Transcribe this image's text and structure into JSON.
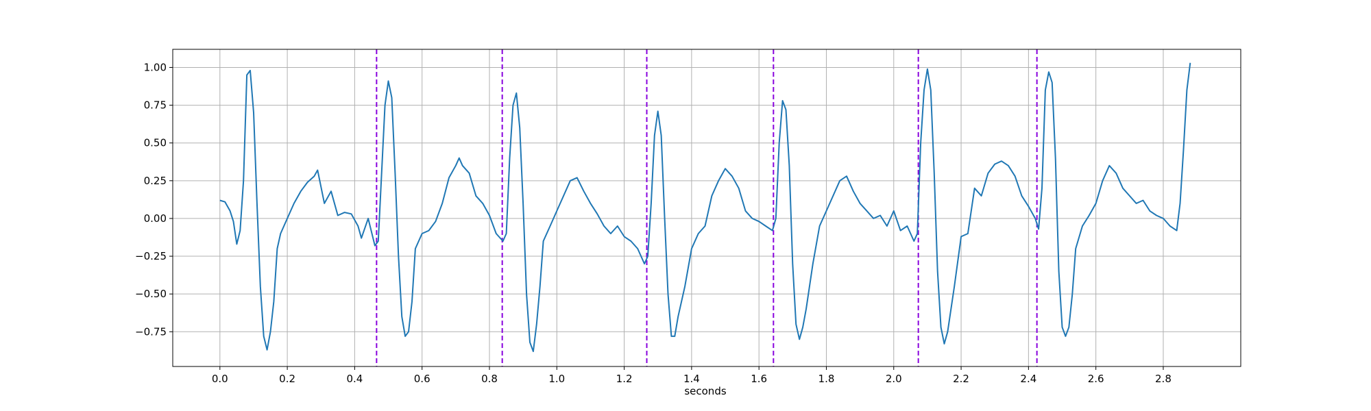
{
  "chart_data": {
    "type": "line",
    "title": "",
    "xlabel": "seconds",
    "ylabel": "",
    "xlim": [
      -0.14,
      3.03
    ],
    "ylim": [
      -0.98,
      1.12
    ],
    "grid": true,
    "legend": "none",
    "xticks": [
      0.0,
      0.2,
      0.4,
      0.6,
      0.8,
      1.0,
      1.2,
      1.4,
      1.6,
      1.8,
      2.0,
      2.2,
      2.4,
      2.6,
      2.8
    ],
    "xtick_labels": [
      "0.0",
      "0.2",
      "0.4",
      "0.6",
      "0.8",
      "1.0",
      "1.2",
      "1.4",
      "1.6",
      "1.8",
      "2.0",
      "2.2",
      "2.4",
      "2.6",
      "2.8"
    ],
    "yticks": [
      -0.75,
      -0.5,
      -0.25,
      0.0,
      0.25,
      0.5,
      0.75,
      1.0
    ],
    "ytick_labels": [
      "−0.75",
      "−0.50",
      "−0.25",
      "0.00",
      "0.25",
      "0.50",
      "0.75",
      "1.00"
    ],
    "series": [
      {
        "color": "#1f77b4",
        "points": [
          [
            0.0,
            0.12
          ],
          [
            0.015,
            0.11
          ],
          [
            0.03,
            0.05
          ],
          [
            0.04,
            -0.02
          ],
          [
            0.05,
            -0.17
          ],
          [
            0.06,
            -0.08
          ],
          [
            0.07,
            0.25
          ],
          [
            0.08,
            0.95
          ],
          [
            0.09,
            0.98
          ],
          [
            0.1,
            0.7
          ],
          [
            0.11,
            0.1
          ],
          [
            0.12,
            -0.45
          ],
          [
            0.13,
            -0.78
          ],
          [
            0.14,
            -0.87
          ],
          [
            0.15,
            -0.75
          ],
          [
            0.16,
            -0.55
          ],
          [
            0.17,
            -0.2
          ],
          [
            0.18,
            -0.1
          ],
          [
            0.2,
            0.0
          ],
          [
            0.22,
            0.1
          ],
          [
            0.24,
            0.18
          ],
          [
            0.26,
            0.24
          ],
          [
            0.28,
            0.28
          ],
          [
            0.29,
            0.32
          ],
          [
            0.31,
            0.1
          ],
          [
            0.33,
            0.18
          ],
          [
            0.35,
            0.02
          ],
          [
            0.37,
            0.04
          ],
          [
            0.39,
            0.03
          ],
          [
            0.41,
            -0.05
          ],
          [
            0.42,
            -0.13
          ],
          [
            0.44,
            0.0
          ],
          [
            0.46,
            -0.18
          ],
          [
            0.47,
            -0.15
          ],
          [
            0.48,
            0.3
          ],
          [
            0.49,
            0.75
          ],
          [
            0.5,
            0.91
          ],
          [
            0.51,
            0.8
          ],
          [
            0.52,
            0.3
          ],
          [
            0.53,
            -0.25
          ],
          [
            0.54,
            -0.65
          ],
          [
            0.55,
            -0.78
          ],
          [
            0.56,
            -0.75
          ],
          [
            0.57,
            -0.55
          ],
          [
            0.58,
            -0.2
          ],
          [
            0.6,
            -0.1
          ],
          [
            0.62,
            -0.08
          ],
          [
            0.64,
            -0.02
          ],
          [
            0.66,
            0.1
          ],
          [
            0.68,
            0.27
          ],
          [
            0.7,
            0.35
          ],
          [
            0.71,
            0.4
          ],
          [
            0.72,
            0.35
          ],
          [
            0.74,
            0.3
          ],
          [
            0.76,
            0.15
          ],
          [
            0.78,
            0.1
          ],
          [
            0.8,
            0.02
          ],
          [
            0.82,
            -0.1
          ],
          [
            0.84,
            -0.15
          ],
          [
            0.85,
            -0.1
          ],
          [
            0.86,
            0.4
          ],
          [
            0.87,
            0.75
          ],
          [
            0.88,
            0.83
          ],
          [
            0.89,
            0.6
          ],
          [
            0.9,
            0.1
          ],
          [
            0.91,
            -0.5
          ],
          [
            0.92,
            -0.82
          ],
          [
            0.93,
            -0.88
          ],
          [
            0.94,
            -0.7
          ],
          [
            0.95,
            -0.45
          ],
          [
            0.96,
            -0.15
          ],
          [
            0.98,
            -0.05
          ],
          [
            1.0,
            0.05
          ],
          [
            1.02,
            0.15
          ],
          [
            1.04,
            0.25
          ],
          [
            1.06,
            0.27
          ],
          [
            1.08,
            0.18
          ],
          [
            1.1,
            0.1
          ],
          [
            1.12,
            0.03
          ],
          [
            1.14,
            -0.05
          ],
          [
            1.16,
            -0.1
          ],
          [
            1.18,
            -0.05
          ],
          [
            1.2,
            -0.12
          ],
          [
            1.22,
            -0.15
          ],
          [
            1.24,
            -0.2
          ],
          [
            1.26,
            -0.3
          ],
          [
            1.27,
            -0.25
          ],
          [
            1.28,
            0.1
          ],
          [
            1.29,
            0.55
          ],
          [
            1.3,
            0.71
          ],
          [
            1.31,
            0.55
          ],
          [
            1.32,
            0.0
          ],
          [
            1.33,
            -0.5
          ],
          [
            1.34,
            -0.78
          ],
          [
            1.35,
            -0.78
          ],
          [
            1.36,
            -0.65
          ],
          [
            1.38,
            -0.45
          ],
          [
            1.4,
            -0.2
          ],
          [
            1.42,
            -0.1
          ],
          [
            1.44,
            -0.05
          ],
          [
            1.46,
            0.15
          ],
          [
            1.48,
            0.25
          ],
          [
            1.5,
            0.33
          ],
          [
            1.52,
            0.28
          ],
          [
            1.54,
            0.2
          ],
          [
            1.56,
            0.05
          ],
          [
            1.58,
            0.0
          ],
          [
            1.6,
            -0.02
          ],
          [
            1.62,
            -0.05
          ],
          [
            1.64,
            -0.08
          ],
          [
            1.65,
            0.0
          ],
          [
            1.66,
            0.5
          ],
          [
            1.67,
            0.78
          ],
          [
            1.68,
            0.72
          ],
          [
            1.69,
            0.35
          ],
          [
            1.7,
            -0.3
          ],
          [
            1.71,
            -0.7
          ],
          [
            1.72,
            -0.8
          ],
          [
            1.73,
            -0.72
          ],
          [
            1.74,
            -0.6
          ],
          [
            1.76,
            -0.3
          ],
          [
            1.78,
            -0.05
          ],
          [
            1.8,
            0.05
          ],
          [
            1.82,
            0.15
          ],
          [
            1.84,
            0.25
          ],
          [
            1.86,
            0.28
          ],
          [
            1.88,
            0.18
          ],
          [
            1.9,
            0.1
          ],
          [
            1.92,
            0.05
          ],
          [
            1.94,
            0.0
          ],
          [
            1.96,
            0.02
          ],
          [
            1.98,
            -0.05
          ],
          [
            2.0,
            0.05
          ],
          [
            2.02,
            -0.08
          ],
          [
            2.04,
            -0.05
          ],
          [
            2.06,
            -0.15
          ],
          [
            2.07,
            -0.1
          ],
          [
            2.08,
            0.5
          ],
          [
            2.09,
            0.85
          ],
          [
            2.1,
            0.99
          ],
          [
            2.11,
            0.85
          ],
          [
            2.12,
            0.3
          ],
          [
            2.13,
            -0.35
          ],
          [
            2.14,
            -0.72
          ],
          [
            2.15,
            -0.83
          ],
          [
            2.16,
            -0.75
          ],
          [
            2.18,
            -0.45
          ],
          [
            2.2,
            -0.12
          ],
          [
            2.22,
            -0.1
          ],
          [
            2.24,
            0.2
          ],
          [
            2.26,
            0.15
          ],
          [
            2.28,
            0.3
          ],
          [
            2.3,
            0.36
          ],
          [
            2.32,
            0.38
          ],
          [
            2.34,
            0.35
          ],
          [
            2.36,
            0.28
          ],
          [
            2.38,
            0.15
          ],
          [
            2.4,
            0.08
          ],
          [
            2.42,
            0.0
          ],
          [
            2.43,
            -0.07
          ],
          [
            2.44,
            0.2
          ],
          [
            2.45,
            0.85
          ],
          [
            2.46,
            0.97
          ],
          [
            2.47,
            0.9
          ],
          [
            2.48,
            0.4
          ],
          [
            2.49,
            -0.35
          ],
          [
            2.5,
            -0.72
          ],
          [
            2.51,
            -0.78
          ],
          [
            2.52,
            -0.72
          ],
          [
            2.53,
            -0.5
          ],
          [
            2.54,
            -0.2
          ],
          [
            2.56,
            -0.05
          ],
          [
            2.58,
            0.02
          ],
          [
            2.6,
            0.1
          ],
          [
            2.62,
            0.25
          ],
          [
            2.64,
            0.35
          ],
          [
            2.66,
            0.3
          ],
          [
            2.68,
            0.2
          ],
          [
            2.7,
            0.15
          ],
          [
            2.72,
            0.1
          ],
          [
            2.74,
            0.12
          ],
          [
            2.76,
            0.05
          ],
          [
            2.78,
            0.02
          ],
          [
            2.8,
            0.0
          ],
          [
            2.82,
            -0.05
          ],
          [
            2.84,
            -0.08
          ],
          [
            2.85,
            0.1
          ],
          [
            2.86,
            0.45
          ],
          [
            2.87,
            0.85
          ],
          [
            2.88,
            1.03
          ]
        ]
      }
    ],
    "vlines": {
      "color": "#8800dd",
      "style": "dashed",
      "x": [
        0.465,
        0.838,
        1.267,
        1.643,
        2.073,
        2.425
      ]
    }
  }
}
